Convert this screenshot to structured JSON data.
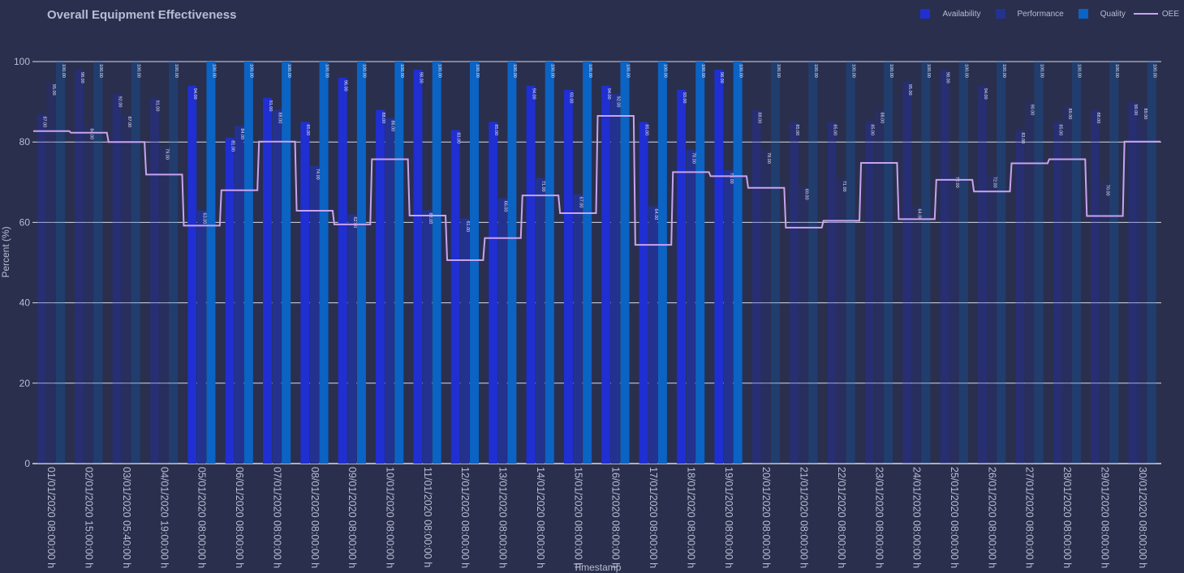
{
  "chart_data": {
    "type": "bar",
    "title": "Overall Equipment Effectiveness",
    "xlabel": "Timestamp",
    "ylabel": "Percent (%)",
    "ylim": [
      0,
      100
    ],
    "yticks": [
      "0",
      "20",
      "40",
      "60",
      "80",
      "100"
    ],
    "grid": true,
    "legend_position": "top-right",
    "colors": {
      "Availability": "#1f2fd1",
      "Performance": "#24328f",
      "Quality": "#0b63c4",
      "OEE": "#c9a3f2",
      "background": "#2a2f4d",
      "grid": "#d8dae6",
      "text": "#b8bdd3"
    },
    "categories": [
      "01/01/2020 08:00:00 h",
      "02/01/2020 15:00:00 h",
      "03/01/2020 05:40:00 h",
      "04/01/2020 19:00:00 h",
      "05/01/2020 08:00:00 h",
      "06/01/2020 08:00:00 h",
      "07/01/2020 08:00:00 h",
      "08/01/2020 08:00:00 h",
      "09/01/2020 08:00:00 h",
      "10/01/2020 08:00:00 h",
      "11/01/2020 08:00:00 h",
      "12/01/2020 08:00:00 h",
      "13/01/2020 08:00:00 h",
      "14/01/2020 08:00:00 h",
      "15/01/2020 08:00:00 h",
      "16/01/2020 08:00:00 h",
      "17/01/2020 08:00:00 h",
      "18/01/2020 08:00:00 h",
      "19/01/2020 08:00:00 h",
      "20/01/2020 08:00:00 h",
      "21/01/2020 08:00:00 h",
      "22/01/2020 08:00:00 h",
      "23/01/2020 08:00:00 h",
      "24/01/2020 08:00:00 h",
      "25/01/2020 08:00:00 h",
      "26/01/2020 08:00:00 h",
      "27/01/2020 08:00:00 h",
      "28/01/2020 08:00:00 h",
      "29/01/2020 08:00:00 h",
      "30/01/2020 08:00:00 h"
    ],
    "highlighted_range": [
      4,
      18
    ],
    "series": [
      {
        "name": "Availability",
        "kind": "bar",
        "values": [
          87,
          98,
          92,
          91,
          94,
          81,
          91,
          85,
          96,
          88,
          98,
          83,
          85,
          94,
          93,
          94,
          85,
          93,
          98,
          88,
          85,
          85,
          85,
          95,
          98,
          94,
          83,
          85,
          88,
          90
        ]
      },
      {
        "name": "Performance",
        "kind": "bar",
        "values": [
          95,
          84,
          87,
          79,
          63,
          84,
          88,
          74,
          62,
          86,
          63,
          61,
          66,
          71,
          67,
          92,
          64,
          78,
          73,
          78,
          69,
          71,
          88,
          64,
          72,
          72,
          90,
          89,
          70,
          89
        ]
      },
      {
        "name": "Quality",
        "kind": "bar",
        "values": [
          100,
          100,
          100,
          100,
          100,
          100,
          100,
          100,
          100,
          100,
          100,
          100,
          100,
          100,
          100,
          100,
          100,
          100,
          100,
          100,
          100,
          100,
          100,
          100,
          100,
          100,
          100,
          100,
          100,
          100
        ]
      },
      {
        "name": "OEE",
        "kind": "step-line",
        "values": [
          82.7,
          82.3,
          80.0,
          71.9,
          59.2,
          68.0,
          80.1,
          62.9,
          59.5,
          75.7,
          61.7,
          50.6,
          56.1,
          66.7,
          62.3,
          86.5,
          54.4,
          72.5,
          71.5,
          68.6,
          58.7,
          60.4,
          74.8,
          60.8,
          70.6,
          67.7,
          74.7,
          75.7,
          61.6,
          80.1
        ]
      }
    ]
  }
}
